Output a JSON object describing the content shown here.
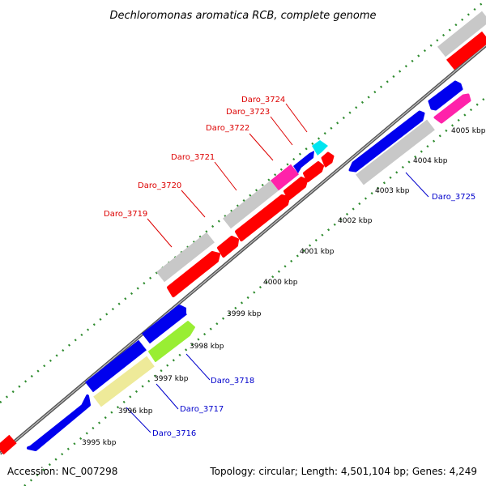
{
  "title": "Dechloromonas aromatica RCB, complete genome",
  "footer": {
    "accession": "Accession: NC_007298",
    "topology": "Topology: circular; Length: 4,501,104 bp; Genes: 4,249"
  },
  "colors": {
    "red": "#ff0000",
    "blue": "#0000ee",
    "gray": "#c8c8c8",
    "magenta": "#ff22aa",
    "cyan": "#00e5f0",
    "green": "#99ee33",
    "khaki": "#eeea99",
    "dots": "#2e8b2e",
    "label_red": "#dd0000",
    "label_blue": "#0000cc"
  },
  "scale_labels": [
    "3995 kbp",
    "3996 kbp",
    "3997 kbp",
    "3998 kbp",
    "3999 kbp",
    "4000 kbp",
    "4001 kbp",
    "4002 kbp",
    "4003 kbp",
    "4004 kbp",
    "4005 kbp"
  ],
  "gene_labels": [
    {
      "text": "Daro_3719",
      "color": "red"
    },
    {
      "text": "Daro_3720",
      "color": "red"
    },
    {
      "text": "Daro_3721",
      "color": "red"
    },
    {
      "text": "Daro_3722",
      "color": "red"
    },
    {
      "text": "Daro_3723",
      "color": "red"
    },
    {
      "text": "Daro_3724",
      "color": "red"
    },
    {
      "text": "Daro_3725",
      "color": "blue"
    },
    {
      "text": "Daro_3718",
      "color": "blue"
    },
    {
      "text": "Daro_3717",
      "color": "blue"
    },
    {
      "text": "Daro_3716",
      "color": "blue"
    }
  ]
}
